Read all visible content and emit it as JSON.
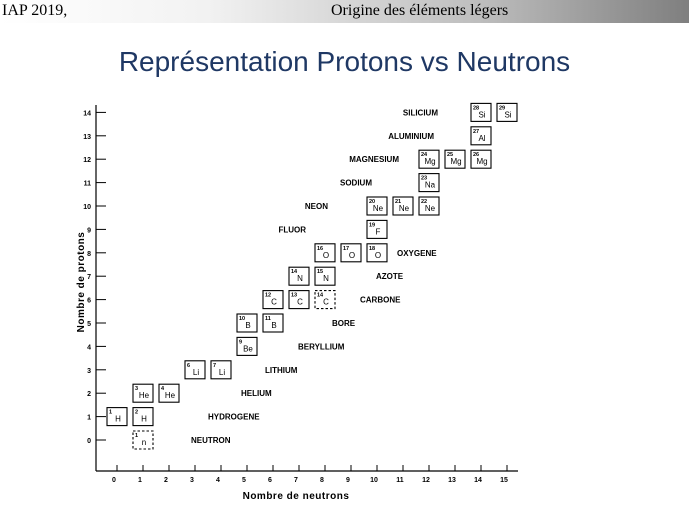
{
  "header": {
    "left": "IAP 2019,",
    "right": "Origine des éléments légers"
  },
  "slide": {
    "title": "Représentation Protons vs Neutrons"
  },
  "chart_data": {
    "type": "scatter",
    "title": "",
    "xlabel": "Nombre de neutrons",
    "ylabel": "Nombre de protons",
    "xlim": [
      0,
      15
    ],
    "ylim": [
      0,
      14
    ],
    "x_ticks": [
      "0",
      "1",
      "2",
      "3",
      "4",
      "5",
      "6",
      "7",
      "8",
      "9",
      "10",
      "11",
      "12",
      "13",
      "14",
      "15"
    ],
    "y_ticks": [
      "0",
      "1",
      "2",
      "3",
      "4",
      "5",
      "6",
      "7",
      "8",
      "9",
      "10",
      "11",
      "12",
      "13",
      "14"
    ],
    "nuclides": [
      {
        "n": 1,
        "z": 0,
        "a": "1",
        "sym": "n",
        "stable": false
      },
      {
        "n": 0,
        "z": 1,
        "a": "1",
        "sym": "H",
        "stable": true
      },
      {
        "n": 1,
        "z": 1,
        "a": "2",
        "sym": "H",
        "stable": true
      },
      {
        "n": 1,
        "z": 2,
        "a": "3",
        "sym": "He",
        "stable": true
      },
      {
        "n": 2,
        "z": 2,
        "a": "4",
        "sym": "He",
        "stable": true
      },
      {
        "n": 3,
        "z": 3,
        "a": "6",
        "sym": "Li",
        "stable": true
      },
      {
        "n": 4,
        "z": 3,
        "a": "7",
        "sym": "Li",
        "stable": true
      },
      {
        "n": 5,
        "z": 4,
        "a": "9",
        "sym": "Be",
        "stable": true
      },
      {
        "n": 5,
        "z": 5,
        "a": "10",
        "sym": "B",
        "stable": true
      },
      {
        "n": 6,
        "z": 5,
        "a": "11",
        "sym": "B",
        "stable": true
      },
      {
        "n": 6,
        "z": 6,
        "a": "12",
        "sym": "C",
        "stable": true
      },
      {
        "n": 7,
        "z": 6,
        "a": "13",
        "sym": "C",
        "stable": true
      },
      {
        "n": 8,
        "z": 6,
        "a": "14",
        "sym": "C",
        "stable": false
      },
      {
        "n": 7,
        "z": 7,
        "a": "14",
        "sym": "N",
        "stable": true
      },
      {
        "n": 8,
        "z": 7,
        "a": "15",
        "sym": "N",
        "stable": true
      },
      {
        "n": 8,
        "z": 8,
        "a": "16",
        "sym": "O",
        "stable": true
      },
      {
        "n": 9,
        "z": 8,
        "a": "17",
        "sym": "O",
        "stable": true
      },
      {
        "n": 10,
        "z": 8,
        "a": "18",
        "sym": "O",
        "stable": true
      },
      {
        "n": 10,
        "z": 9,
        "a": "19",
        "sym": "F",
        "stable": true
      },
      {
        "n": 10,
        "z": 10,
        "a": "20",
        "sym": "Ne",
        "stable": true
      },
      {
        "n": 11,
        "z": 10,
        "a": "21",
        "sym": "Ne",
        "stable": true
      },
      {
        "n": 12,
        "z": 10,
        "a": "22",
        "sym": "Ne",
        "stable": true
      },
      {
        "n": 12,
        "z": 11,
        "a": "23",
        "sym": "Na",
        "stable": true
      },
      {
        "n": 12,
        "z": 12,
        "a": "24",
        "sym": "Mg",
        "stable": true
      },
      {
        "n": 13,
        "z": 12,
        "a": "25",
        "sym": "Mg",
        "stable": true
      },
      {
        "n": 14,
        "z": 12,
        "a": "26",
        "sym": "Mg",
        "stable": true
      },
      {
        "n": 14,
        "z": 13,
        "a": "27",
        "sym": "Al",
        "stable": true
      },
      {
        "n": 14,
        "z": 14,
        "a": "28",
        "sym": "Si",
        "stable": true
      },
      {
        "n": 15,
        "z": 14,
        "a": "29",
        "sym": "Si",
        "stable": true
      }
    ],
    "element_labels": [
      {
        "text": "NEUTRON",
        "z": 0
      },
      {
        "text": "HYDROGENE",
        "z": 1
      },
      {
        "text": "HELIUM",
        "z": 2
      },
      {
        "text": "LITHIUM",
        "z": 3
      },
      {
        "text": "BERYLLIUM",
        "z": 4
      },
      {
        "text": "BORE",
        "z": 5
      },
      {
        "text": "CARBONE",
        "z": 6
      },
      {
        "text": "AZOTE",
        "z": 7
      },
      {
        "text": "OXYGENE",
        "z": 8
      },
      {
        "text": "FLUOR",
        "z": 9
      },
      {
        "text": "NEON",
        "z": 10
      },
      {
        "text": "SODIUM",
        "z": 11
      },
      {
        "text": "MAGNESIUM",
        "z": 12
      },
      {
        "text": "ALUMINIUM",
        "z": 13
      },
      {
        "text": "SILICIUM",
        "z": 14
      }
    ]
  }
}
